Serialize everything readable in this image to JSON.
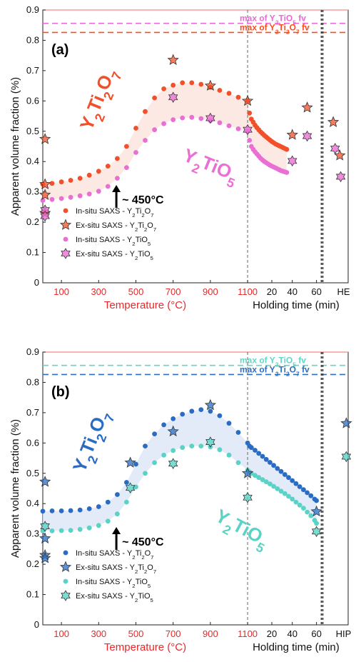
{
  "chart_data": [
    {
      "type": "scatter",
      "panel_label": "(a)",
      "ylabel": "Apparent volume fraction (%)",
      "ylim": [
        0,
        0.9
      ],
      "yticks": [
        "0",
        "0.1",
        "0.2",
        "0.3",
        "0.4",
        "0.5",
        "0.6",
        "0.7",
        "0.8",
        "0.9"
      ],
      "temp_ticks": [
        "100",
        "300",
        "500",
        "700",
        "900",
        "1100"
      ],
      "time_ticks": [
        "20",
        "40",
        "60"
      ],
      "end_tick": "HE",
      "xlabel_temperature": "Temperature (°C)",
      "xlabel_time": "Holding time (min)",
      "annotation": "~ 450°C",
      "compound_labels": {
        "a": "Y₂Ti₂O₇",
        "b": "Y₂TiO₅"
      },
      "max_lines": [
        {
          "label": "max of Y₂TiO₅ fv",
          "value": 0.856,
          "color": "#e86ad6"
        },
        {
          "label": "max of Y₂Ti₂O₇ fv",
          "value": 0.826,
          "color": "#ff4a1a"
        }
      ],
      "colors": {
        "a": "#f2502a",
        "b": "#ea6fd4",
        "band": "#fde3dd"
      },
      "legend": [
        "In-situ SAXS - Y₂Ti₂O₇",
        "Ex-situ SAXS - Y₂Ti₂O₇",
        "In-situ SAXS - Y₂TiO₅",
        "Ex-situ SAXS - Y₂TiO₅"
      ],
      "insitu_a": [
        [
          0,
          0.325
        ],
        [
          50,
          0.328
        ],
        [
          100,
          0.333
        ],
        [
          150,
          0.338
        ],
        [
          200,
          0.345
        ],
        [
          250,
          0.355
        ],
        [
          300,
          0.368
        ],
        [
          350,
          0.385
        ],
        [
          400,
          0.41
        ],
        [
          450,
          0.45
        ],
        [
          500,
          0.51
        ],
        [
          550,
          0.565
        ],
        [
          600,
          0.61
        ],
        [
          650,
          0.64
        ],
        [
          700,
          0.652
        ],
        [
          750,
          0.66
        ],
        [
          800,
          0.66
        ],
        [
          850,
          0.655
        ],
        [
          900,
          0.645
        ],
        [
          950,
          0.635
        ],
        [
          1000,
          0.625
        ],
        [
          1050,
          0.612
        ],
        [
          1100,
          0.6
        ],
        [
          1110,
          0.56
        ],
        [
          1120,
          0.54
        ],
        [
          1130,
          0.53
        ],
        [
          1140,
          0.52
        ],
        [
          1150,
          0.512
        ],
        [
          1160,
          0.505
        ],
        [
          1170,
          0.498
        ],
        [
          1180,
          0.492
        ],
        [
          1190,
          0.486
        ],
        [
          1200,
          0.481
        ],
        [
          1210,
          0.476
        ],
        [
          1220,
          0.471
        ],
        [
          1230,
          0.466
        ],
        [
          1240,
          0.462
        ],
        [
          1250,
          0.458
        ],
        [
          1260,
          0.455
        ],
        [
          1270,
          0.452
        ],
        [
          1280,
          0.449
        ],
        [
          1290,
          0.446
        ],
        [
          1300,
          0.443
        ],
        [
          1310,
          0.44
        ]
      ],
      "insitu_b": [
        [
          0,
          0.272
        ],
        [
          50,
          0.275
        ],
        [
          100,
          0.278
        ],
        [
          150,
          0.282
        ],
        [
          200,
          0.287
        ],
        [
          250,
          0.293
        ],
        [
          300,
          0.302
        ],
        [
          350,
          0.318
        ],
        [
          400,
          0.345
        ],
        [
          450,
          0.38
        ],
        [
          500,
          0.43
        ],
        [
          550,
          0.47
        ],
        [
          600,
          0.505
        ],
        [
          650,
          0.525
        ],
        [
          700,
          0.538
        ],
        [
          750,
          0.544
        ],
        [
          800,
          0.546
        ],
        [
          850,
          0.542
        ],
        [
          900,
          0.535
        ],
        [
          950,
          0.528
        ],
        [
          1000,
          0.518
        ],
        [
          1050,
          0.508
        ],
        [
          1100,
          0.5
        ],
        [
          1110,
          0.47
        ],
        [
          1120,
          0.45
        ],
        [
          1130,
          0.44
        ],
        [
          1140,
          0.432
        ],
        [
          1150,
          0.425
        ],
        [
          1160,
          0.418
        ],
        [
          1170,
          0.411
        ],
        [
          1180,
          0.405
        ],
        [
          1190,
          0.4
        ],
        [
          1200,
          0.396
        ],
        [
          1210,
          0.392
        ],
        [
          1220,
          0.388
        ],
        [
          1230,
          0.385
        ],
        [
          1240,
          0.382
        ],
        [
          1250,
          0.379
        ],
        [
          1260,
          0.376
        ],
        [
          1270,
          0.373
        ],
        [
          1280,
          0.37
        ],
        [
          1290,
          0.368
        ],
        [
          1300,
          0.366
        ],
        [
          1310,
          0.364
        ]
      ],
      "exsitu_a": [
        [
          0,
          0.474
        ],
        [
          0,
          0.325
        ],
        [
          0,
          0.29
        ],
        [
          0,
          0.23
        ],
        [
          700,
          0.735
        ],
        [
          900,
          0.65
        ],
        [
          1100,
          0.6
        ],
        [
          1340,
          0.488
        ],
        [
          1420,
          0.578
        ],
        [
          1560,
          0.53
        ],
        [
          1595,
          0.42
        ]
      ],
      "exsitu_b": [
        [
          0,
          0.24
        ],
        [
          0,
          0.22
        ],
        [
          700,
          0.612
        ],
        [
          900,
          0.543
        ],
        [
          1100,
          0.505
        ],
        [
          1340,
          0.402
        ],
        [
          1420,
          0.484
        ],
        [
          1570,
          0.443
        ],
        [
          1600,
          0.35
        ]
      ]
    },
    {
      "type": "scatter",
      "panel_label": "(b)",
      "ylabel": "Apparent volume fraction (%)",
      "ylim": [
        0,
        0.9
      ],
      "yticks": [
        "0",
        "0.1",
        "0.2",
        "0.3",
        "0.4",
        "0.5",
        "0.6",
        "0.7",
        "0.8",
        "0.9"
      ],
      "temp_ticks": [
        "100",
        "300",
        "500",
        "700",
        "900",
        "1100"
      ],
      "time_ticks": [
        "20",
        "40",
        "60"
      ],
      "end_tick": "HIP",
      "xlabel_temperature": "Temperature (°C)",
      "xlabel_time": "Holding time (min)",
      "annotation": "~ 450°C",
      "compound_labels": {
        "a": "Y₂Ti₂O₇",
        "b": "Y₂TiO₅"
      },
      "max_lines": [
        {
          "label": "max of Y₂TiO₅ fv",
          "value": 0.856,
          "color": "#5fd6c8"
        },
        {
          "label": "max of Y₂Ti₂O₇ fv",
          "value": 0.826,
          "color": "#2c6fc0"
        }
      ],
      "colors": {
        "a": "#2a6cc4",
        "b": "#5ad3c6",
        "band": "#dce6f6"
      },
      "legend": [
        "In-situ SAXS  - Y₂Ti₂O₇",
        "Ex-situ SAXS - Y₂Ti₂O₇",
        "In-situ SAXS  - Y₂TiO₅",
        "Ex-situ SAXS - Y₂TiO₅"
      ],
      "insitu_a": [
        [
          0,
          0.375
        ],
        [
          50,
          0.376
        ],
        [
          100,
          0.376
        ],
        [
          150,
          0.377
        ],
        [
          200,
          0.379
        ],
        [
          250,
          0.383
        ],
        [
          300,
          0.39
        ],
        [
          350,
          0.405
        ],
        [
          400,
          0.43
        ],
        [
          450,
          0.47
        ],
        [
          500,
          0.53
        ],
        [
          550,
          0.59
        ],
        [
          600,
          0.63
        ],
        [
          650,
          0.66
        ],
        [
          700,
          0.68
        ],
        [
          750,
          0.695
        ],
        [
          800,
          0.705
        ],
        [
          850,
          0.71
        ],
        [
          900,
          0.705
        ],
        [
          950,
          0.69
        ],
        [
          1000,
          0.665
        ],
        [
          1050,
          0.635
        ],
        [
          1100,
          0.6
        ],
        [
          1110,
          0.59
        ],
        [
          1120,
          0.585
        ],
        [
          1140,
          0.576
        ],
        [
          1160,
          0.566
        ],
        [
          1180,
          0.556
        ],
        [
          1200,
          0.546
        ],
        [
          1220,
          0.536
        ],
        [
          1240,
          0.526
        ],
        [
          1260,
          0.516
        ],
        [
          1280,
          0.506
        ],
        [
          1300,
          0.496
        ],
        [
          1320,
          0.486
        ],
        [
          1340,
          0.476
        ],
        [
          1360,
          0.466
        ],
        [
          1380,
          0.456
        ],
        [
          1400,
          0.446
        ],
        [
          1420,
          0.436
        ],
        [
          1440,
          0.426
        ],
        [
          1460,
          0.415
        ],
        [
          1470,
          0.41
        ]
      ],
      "insitu_b": [
        [
          0,
          0.31
        ],
        [
          50,
          0.31
        ],
        [
          100,
          0.311
        ],
        [
          150,
          0.312
        ],
        [
          200,
          0.315
        ],
        [
          250,
          0.32
        ],
        [
          300,
          0.328
        ],
        [
          350,
          0.342
        ],
        [
          400,
          0.366
        ],
        [
          450,
          0.405
        ],
        [
          500,
          0.455
        ],
        [
          550,
          0.5
        ],
        [
          600,
          0.535
        ],
        [
          650,
          0.56
        ],
        [
          700,
          0.575
        ],
        [
          750,
          0.585
        ],
        [
          800,
          0.59
        ],
        [
          850,
          0.59
        ],
        [
          900,
          0.587
        ],
        [
          950,
          0.578
        ],
        [
          1000,
          0.56
        ],
        [
          1050,
          0.535
        ],
        [
          1100,
          0.51
        ],
        [
          1110,
          0.505
        ],
        [
          1120,
          0.5
        ],
        [
          1140,
          0.493
        ],
        [
          1160,
          0.486
        ],
        [
          1180,
          0.479
        ],
        [
          1200,
          0.472
        ],
        [
          1220,
          0.465
        ],
        [
          1240,
          0.457
        ],
        [
          1260,
          0.449
        ],
        [
          1280,
          0.441
        ],
        [
          1300,
          0.433
        ],
        [
          1320,
          0.424
        ],
        [
          1340,
          0.415
        ],
        [
          1360,
          0.405
        ],
        [
          1380,
          0.395
        ],
        [
          1400,
          0.385
        ],
        [
          1420,
          0.372
        ],
        [
          1440,
          0.36
        ],
        [
          1460,
          0.345
        ],
        [
          1470,
          0.335
        ]
      ],
      "exsitu_a": [
        [
          0,
          0.472
        ],
        [
          0,
          0.285
        ],
        [
          0,
          0.23
        ],
        [
          0,
          0.22
        ],
        [
          470,
          0.535
        ],
        [
          700,
          0.638
        ],
        [
          900,
          0.725
        ],
        [
          1100,
          0.5
        ],
        [
          1470,
          0.374
        ],
        [
          1630,
          0.665
        ]
      ],
      "exsitu_b": [
        [
          0,
          0.325
        ],
        [
          470,
          0.452
        ],
        [
          700,
          0.532
        ],
        [
          900,
          0.603
        ],
        [
          1100,
          0.42
        ],
        [
          1470,
          0.308
        ],
        [
          1630,
          0.555
        ]
      ]
    }
  ]
}
